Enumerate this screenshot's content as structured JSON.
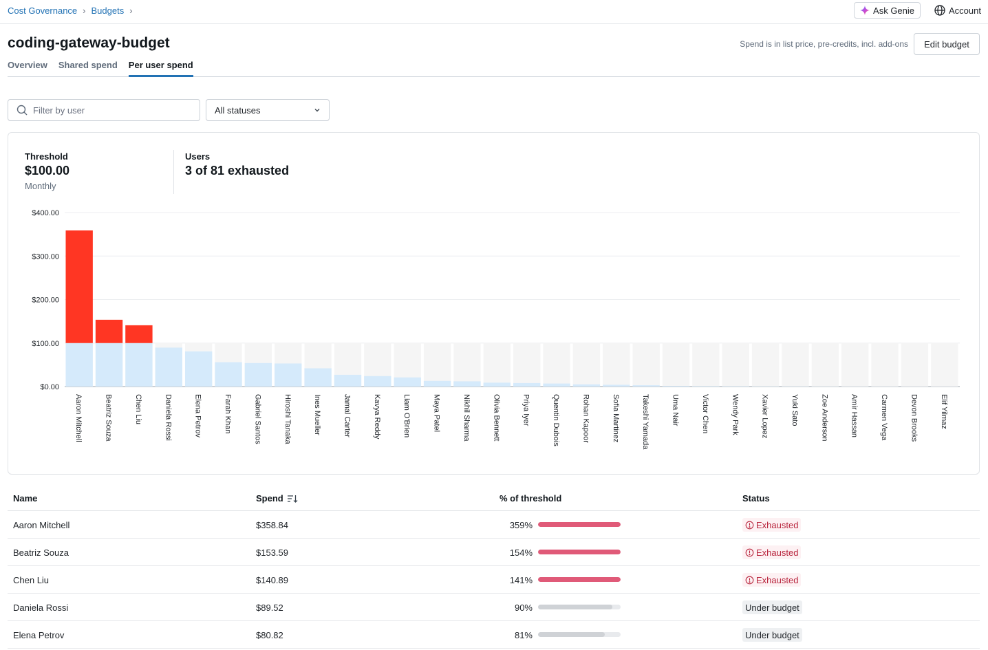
{
  "breadcrumbs": [
    "Cost Governance",
    "Budgets"
  ],
  "top_actions": {
    "genie_label": "Ask Genie",
    "account_label": "Account"
  },
  "header": {
    "title": "coding-gateway-budget",
    "spend_note": "Spend is in list price, pre-credits, incl. add-ons",
    "edit_label": "Edit budget"
  },
  "tabs": [
    {
      "label": "Overview",
      "active": false
    },
    {
      "label": "Shared spend",
      "active": false
    },
    {
      "label": "Per user spend",
      "active": true
    }
  ],
  "filters": {
    "user_placeholder": "Filter by user",
    "status_value": "All statuses"
  },
  "stats": {
    "threshold_label": "Threshold",
    "threshold_value": "$100.00",
    "threshold_period": "Monthly",
    "users_label": "Users",
    "users_value": "3 of 81 exhausted"
  },
  "colors": {
    "over": "#ff3623",
    "under": "#d5eafb",
    "bg_track": "#f5f5f5",
    "pct_over": "#e05a78",
    "pct_under": "#cfd2d6"
  },
  "chart_data": {
    "type": "bar",
    "threshold": 100,
    "ylim": [
      0,
      400
    ],
    "yticks": [
      "$0.00",
      "$100.00",
      "$200.00",
      "$300.00",
      "$400.00"
    ],
    "categories": [
      "Aaron Mitchell",
      "Beatriz Souza",
      "Chen Liu",
      "Daniela Rossi",
      "Elena Petrov",
      "Farah Khan",
      "Gabriel Santos",
      "Hiroshi Tanaka",
      "Ines Mueller",
      "Jamal Carter",
      "Kavya Reddy",
      "Liam O'Brien",
      "Maya Patel",
      "Nikhil Sharma",
      "Olivia Bennett",
      "Priya Iyer",
      "Quentin Dubois",
      "Rohan Kapoor",
      "Sofia Martinez",
      "Takeshi Yamada",
      "Uma Nair",
      "Victor Chen",
      "Wendy Park",
      "Xavier Lopez",
      "Yuki Sato",
      "Zoe Anderson",
      "Amir Hassan",
      "Carmen Vega",
      "Devon Brooks",
      "Elif Yilmaz"
    ],
    "values": [
      358.84,
      153.59,
      140.89,
      89.52,
      80.82,
      56,
      54,
      53,
      42,
      27,
      24,
      21,
      13,
      12,
      9,
      8,
      7,
      5,
      4,
      3,
      1.5,
      1,
      0.8,
      0.5,
      0.4,
      0.3,
      0.2,
      0.2,
      0.1,
      0.1
    ]
  },
  "table": {
    "headers": {
      "name": "Name",
      "spend": "Spend",
      "pct": "% of threshold",
      "status": "Status"
    },
    "rows": [
      {
        "name": "Aaron Mitchell",
        "spend": "$358.84",
        "pct_label": "359%",
        "pct": 359,
        "status": "Exhausted",
        "exhausted": true
      },
      {
        "name": "Beatriz Souza",
        "spend": "$153.59",
        "pct_label": "154%",
        "pct": 154,
        "status": "Exhausted",
        "exhausted": true
      },
      {
        "name": "Chen Liu",
        "spend": "$140.89",
        "pct_label": "141%",
        "pct": 141,
        "status": "Exhausted",
        "exhausted": true
      },
      {
        "name": "Daniela Rossi",
        "spend": "$89.52",
        "pct_label": "90%",
        "pct": 90,
        "status": "Under budget",
        "exhausted": false
      },
      {
        "name": "Elena Petrov",
        "spend": "$80.82",
        "pct_label": "81%",
        "pct": 81,
        "status": "Under budget",
        "exhausted": false
      }
    ]
  }
}
